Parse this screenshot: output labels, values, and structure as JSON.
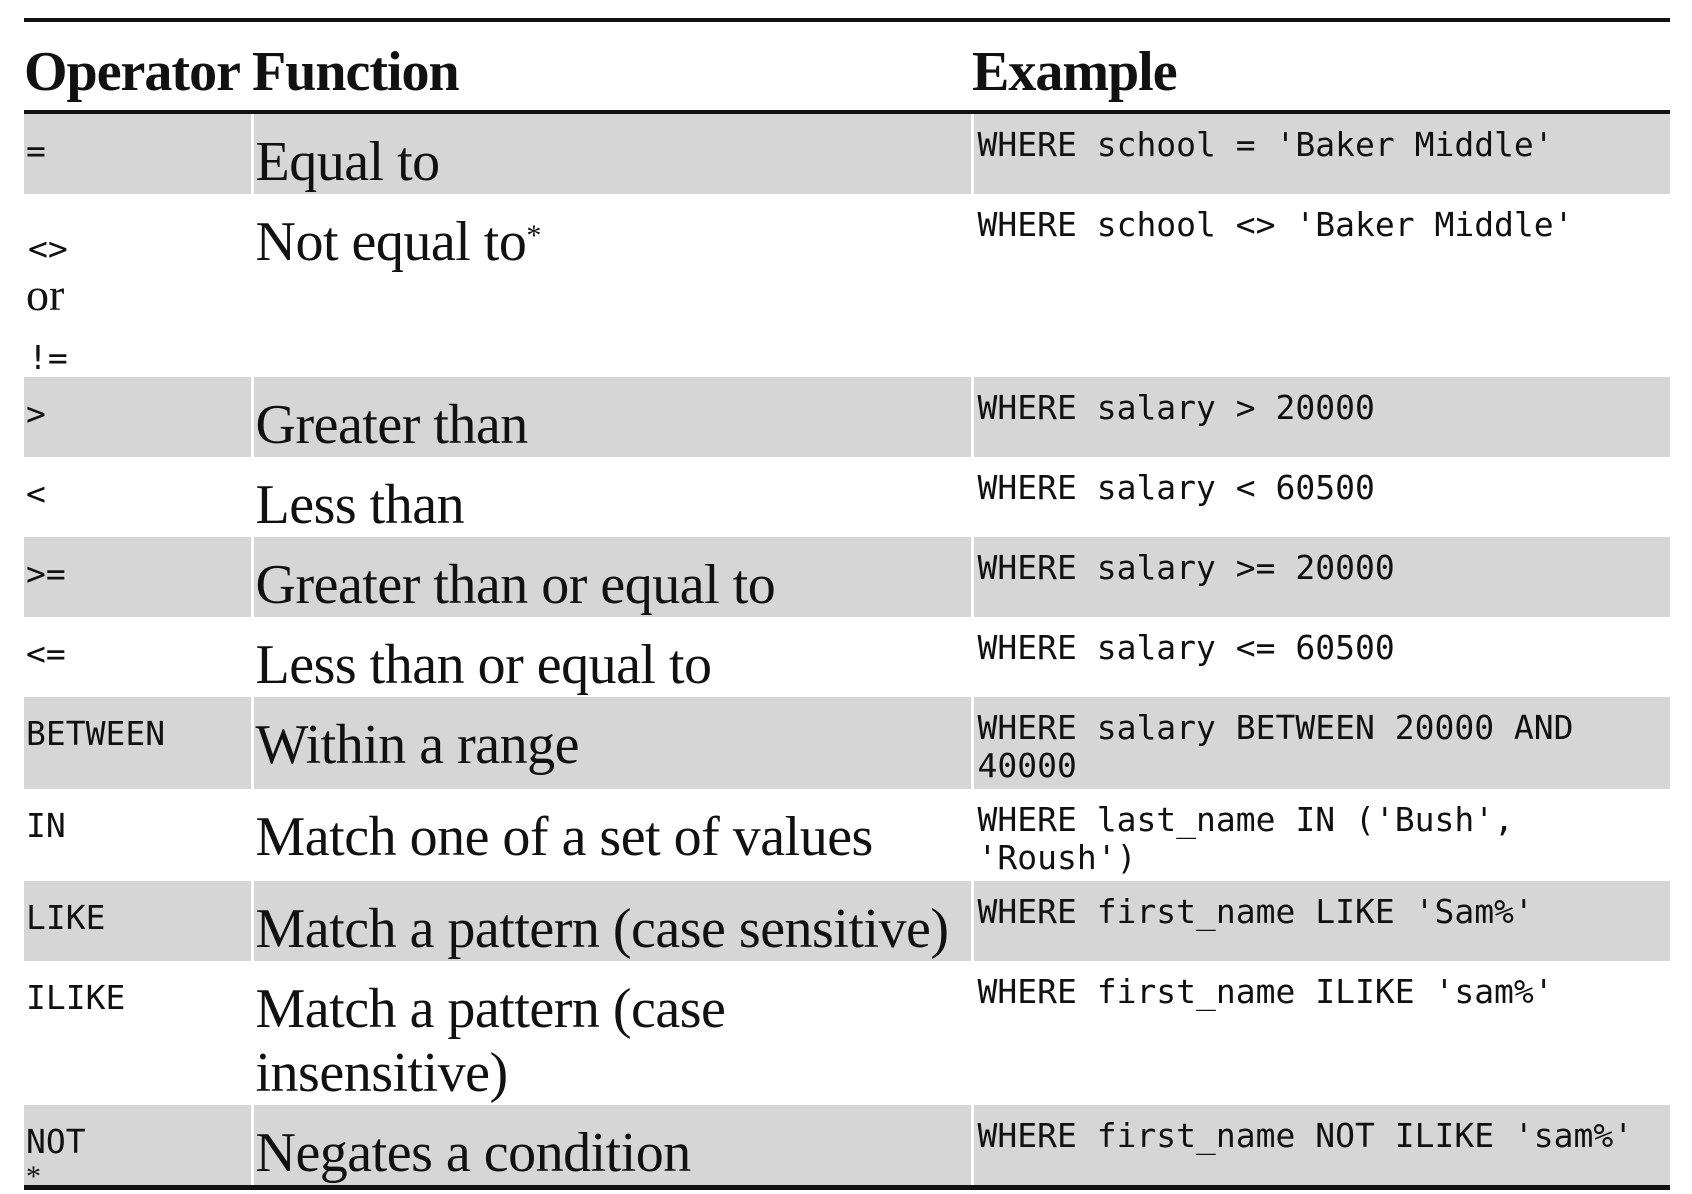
{
  "headers": {
    "operator": "Operator",
    "function": "Function",
    "example": "Example"
  },
  "rows": [
    {
      "operator": "=",
      "function": "Equal to",
      "example": "WHERE school = 'Baker Middle'"
    },
    {
      "operator_a": "<>",
      "operator_or": "or",
      "operator_b": "!=",
      "function": "Not equal to",
      "function_mark": "*",
      "example": "WHERE school <> 'Baker Middle'"
    },
    {
      "operator": ">",
      "function": "Greater than",
      "example": "WHERE salary > 20000"
    },
    {
      "operator": "<",
      "function": "Less than",
      "example": "WHERE salary < 60500"
    },
    {
      "operator": ">=",
      "function": "Greater than or equal to",
      "example": "WHERE salary >= 20000"
    },
    {
      "operator": "<=",
      "function": "Less than or equal to",
      "example": "WHERE salary <= 60500"
    },
    {
      "operator": "BETWEEN",
      "function": "Within a range",
      "example_line1": "WHERE salary BETWEEN 20000 AND",
      "example_line2": "40000"
    },
    {
      "operator": "IN",
      "function": "Match one of a set of values",
      "example_line1": "WHERE last_name IN ('Bush',",
      "example_line2": "'Roush')"
    },
    {
      "operator": "LIKE",
      "function": "Match a pattern (case sensitive)",
      "example": "WHERE first_name LIKE 'Sam%'"
    },
    {
      "operator": "ILIKE",
      "function_line1": "Match a pattern (case",
      "function_line2": "insensitive)",
      "example": "WHERE first_name ILIKE 'sam%'"
    },
    {
      "operator": "NOT",
      "function": "Negates a condition",
      "example": "WHERE first_name NOT ILIKE 'sam%'"
    }
  ],
  "footnote": {
    "mark": "*"
  }
}
